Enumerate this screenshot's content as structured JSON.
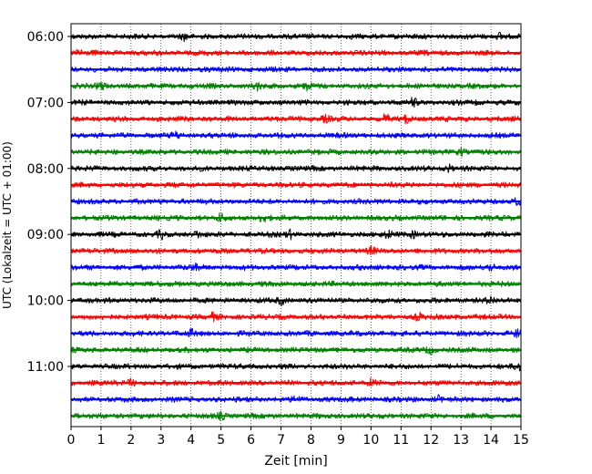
{
  "chart_data": {
    "type": "line",
    "title": "",
    "xlabel": "Zeit  [min]",
    "ylabel": "UTC (Lokalzeit = UTC + 01:00)",
    "xlim": [
      0,
      15
    ],
    "x_ticks": [
      "0",
      "1",
      "2",
      "3",
      "4",
      "5",
      "6",
      "7",
      "8",
      "9",
      "10",
      "11",
      "12",
      "13",
      "14",
      "15"
    ],
    "y_tick_labels": [
      "06:00",
      "07:00",
      "08:00",
      "09:00",
      "10:00",
      "11:00"
    ],
    "grid": "vertical dotted at each minute",
    "trace_interval_min": 15,
    "color_cycle": [
      "#000000",
      "#ff0000",
      "#0000ff",
      "#008000"
    ],
    "series": [
      {
        "start": "06:00",
        "color": "#000000",
        "events": [
          3.8,
          14.3
        ]
      },
      {
        "start": "06:15",
        "color": "#ff0000",
        "events": [
          0.3
        ]
      },
      {
        "start": "06:30",
        "color": "#0000ff",
        "events": []
      },
      {
        "start": "06:45",
        "color": "#008000",
        "events": [
          1.0,
          6.2,
          7.9
        ]
      },
      {
        "start": "07:00",
        "color": "#000000",
        "events": [
          11.4
        ]
      },
      {
        "start": "07:15",
        "color": "#ff0000",
        "events": [
          8.5,
          10.5,
          11.2
        ]
      },
      {
        "start": "07:30",
        "color": "#0000ff",
        "events": [
          3.5
        ]
      },
      {
        "start": "07:45",
        "color": "#008000",
        "events": [
          13.0
        ]
      },
      {
        "start": "08:00",
        "color": "#000000",
        "events": [
          12.6
        ]
      },
      {
        "start": "08:15",
        "color": "#ff0000",
        "events": []
      },
      {
        "start": "08:30",
        "color": "#0000ff",
        "events": [
          14.9
        ]
      },
      {
        "start": "08:45",
        "color": "#008000",
        "events": [
          5.0,
          6.4
        ]
      },
      {
        "start": "09:00",
        "color": "#000000",
        "events": [
          3.0,
          4.2,
          7.3,
          10.6,
          11.4
        ]
      },
      {
        "start": "09:15",
        "color": "#ff0000",
        "events": [
          10.0
        ]
      },
      {
        "start": "09:30",
        "color": "#0000ff",
        "events": [
          4.1,
          14.0
        ]
      },
      {
        "start": "09:45",
        "color": "#008000",
        "events": []
      },
      {
        "start": "10:00",
        "color": "#000000",
        "events": [
          7.0,
          14.0
        ]
      },
      {
        "start": "10:15",
        "color": "#ff0000",
        "events": [
          4.7,
          11.6
        ]
      },
      {
        "start": "10:30",
        "color": "#0000ff",
        "events": [
          4.0,
          14.9
        ]
      },
      {
        "start": "10:45",
        "color": "#008000",
        "events": [
          12.0
        ]
      },
      {
        "start": "11:00",
        "color": "#000000",
        "events": [
          14.9
        ]
      },
      {
        "start": "11:15",
        "color": "#ff0000",
        "events": [
          2.0,
          10.0
        ]
      },
      {
        "start": "11:30",
        "color": "#0000ff",
        "events": [
          7.5,
          12.3
        ]
      },
      {
        "start": "11:45",
        "color": "#008000",
        "events": [
          5.0
        ]
      }
    ]
  }
}
